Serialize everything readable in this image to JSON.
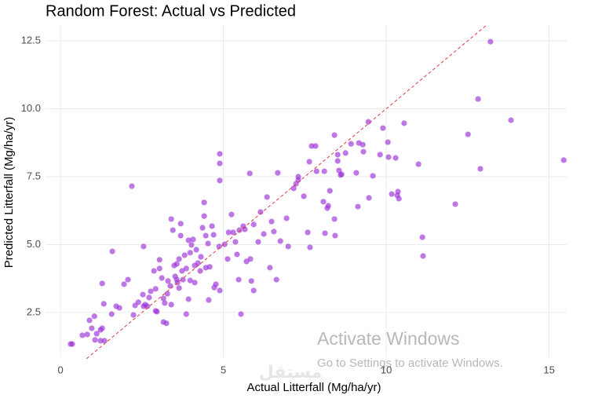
{
  "chart_data": {
    "type": "scatter",
    "title": "Random Forest: Actual vs Predicted",
    "x_label": "Actual Litterfall (Mg/ha/yr)",
    "y_label": "Predicted Litterfall (Mg/ha/yr)",
    "xlim": [
      -0.46,
      15.54
    ],
    "ylim": [
      0.85,
      13.08
    ],
    "xticks": [
      0,
      5,
      10,
      15
    ],
    "yticks": [
      2.5,
      {
        "value": 5,
        "label": "5.0"
      },
      7.5,
      {
        "value": 10,
        "label": "10.0"
      },
      12.5
    ],
    "grid": true,
    "series": [
      {
        "color": "#9b30d9",
        "x": [
          0.36,
          0.31,
          0.67,
          0.82,
          0.89,
          0.96,
          1.04,
          1.06,
          1.11,
          1.23,
          1.28,
          1.23,
          1.35,
          1.28,
          1.33,
          1.57,
          1.59,
          1.71,
          1.81,
          1.95,
          2.07,
          2.19,
          2.24,
          2.29,
          2.39,
          2.53,
          2.55,
          2.55,
          2.67,
          2.6,
          2.72,
          2.77,
          2.87,
          2.92,
          2.92,
          2.96,
          3.04,
          3.04,
          3.11,
          3.16,
          3.16,
          3.2,
          3.25,
          3.28,
          3.3,
          3.37,
          3.4,
          3.4,
          3.45,
          3.49,
          3.52,
          3.57,
          3.57,
          3.59,
          3.64,
          3.64,
          3.69,
          3.69,
          3.73,
          3.76,
          3.81,
          3.86,
          3.86,
          3.93,
          3.93,
          3.98,
          3.98,
          4.02,
          4.07,
          4.12,
          4.12,
          4.17,
          4.22,
          4.29,
          4.31,
          4.36,
          4.41,
          4.41,
          4.46,
          4.46,
          4.53,
          4.55,
          4.58,
          4.65,
          4.7,
          4.72,
          4.77,
          4.87,
          4.89,
          4.89,
          4.89,
          4.89,
          5.04,
          5.13,
          5.16,
          5.25,
          5.3,
          5.37,
          5.42,
          5.47,
          5.49,
          5.54,
          5.61,
          5.66,
          5.71,
          5.81,
          5.83,
          5.86,
          5.93,
          5.93,
          6.07,
          6.14,
          6.24,
          6.34,
          6.43,
          6.48,
          6.55,
          6.63,
          6.67,
          6.75,
          6.94,
          6.99,
          7.16,
          7.23,
          7.3,
          7.3,
          7.47,
          7.59,
          7.64,
          7.66,
          7.71,
          7.83,
          7.86,
          8.07,
          8.1,
          8.12,
          8.19,
          8.22,
          8.27,
          8.41,
          8.41,
          8.43,
          8.51,
          8.51,
          8.55,
          8.6,
          8.63,
          8.75,
          8.92,
          9.08,
          9.13,
          9.16,
          9.28,
          9.3,
          9.45,
          9.47,
          9.59,
          9.81,
          9.9,
          10.05,
          10.07,
          10.17,
          10.29,
          10.34,
          10.36,
          10.39,
          10.55,
          10.99,
          11.11,
          11.13,
          12.12,
          12.51,
          12.82,
          12.89,
          13.83,
          15.45,
          13.2
        ],
        "values": [
          1.34,
          1.34,
          1.66,
          1.69,
          2.21,
          1.92,
          2.36,
          1.49,
          1.72,
          1.86,
          1.92,
          1.46,
          1.46,
          3.57,
          2.82,
          2.44,
          4.75,
          2.73,
          2.67,
          3.54,
          3.71,
          7.15,
          2.41,
          2.76,
          2.88,
          3.16,
          4.93,
          2.73,
          2.73,
          2.79,
          3.05,
          3.28,
          4.03,
          3.37,
          2.56,
          2.53,
          4.12,
          4.44,
          3.77,
          3.02,
          2.15,
          2.85,
          2.1,
          3.19,
          3.66,
          3.48,
          5.94,
          2.79,
          5.53,
          4.23,
          3.83,
          4.29,
          3.71,
          3.6,
          3.4,
          4.47,
          5.77,
          5.33,
          4.03,
          3.71,
          4.61,
          4.12,
          2.44,
          2.99,
          5.16,
          4.7,
          3.68,
          4.99,
          5.19,
          4.23,
          3.6,
          4.81,
          4.32,
          4.03,
          4.55,
          5.62,
          6.55,
          6.05,
          5.33,
          4.15,
          5.04,
          2.96,
          4.18,
          5.68,
          5.36,
          3.42,
          3.54,
          4.93,
          7.36,
          7.99,
          8.34,
          3.31,
          5.01,
          4.47,
          5.45,
          6.11,
          5.45,
          5.1,
          4.64,
          3.71,
          5.53,
          2.44,
          5.68,
          5.56,
          4.38,
          7.62,
          4.47,
          3.66,
          3.31,
          5.74,
          5.1,
          6.2,
          5.39,
          6.75,
          4.15,
          5.85,
          5.48,
          3.71,
          7.64,
          5.13,
          5.97,
          4.93,
          7.07,
          7.24,
          7.38,
          7.5,
          6.78,
          5.45,
          8.05,
          4.9,
          8.63,
          8.63,
          7.7,
          6.58,
          7.7,
          5.42,
          6.34,
          6.43,
          6.98,
          5.94,
          9.03,
          5.33,
          8.31,
          8.08,
          7.73,
          7.56,
          7.59,
          8.37,
          8.71,
          7.64,
          6.4,
          8.74,
          8.68,
          8.42,
          9.52,
          6.72,
          7.53,
          8.31,
          9.29,
          8.77,
          8.22,
          6.86,
          8.19,
          6.81,
          6.95,
          6.69,
          9.47,
          7.96,
          5.27,
          4.58,
          6.49,
          9.06,
          10.36,
          7.79,
          9.58,
          8.11,
          12.47
        ]
      }
    ],
    "reference_line": {
      "color": "#e03a3e",
      "x": [
        0.8,
        13.05
      ],
      "y": [
        0.8,
        13.05
      ]
    }
  },
  "watermark": {
    "title": "Activate Windows",
    "subtitle": "Go to Settings to activate Windows.",
    "logo": "مستقل"
  }
}
